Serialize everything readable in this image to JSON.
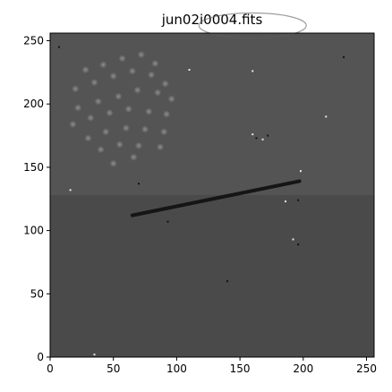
{
  "chart_data": {
    "type": "heatmap",
    "title": "jun02i0004.fits",
    "xlabel": "",
    "ylabel": "",
    "xlim": [
      0,
      256
    ],
    "ylim": [
      0,
      256
    ],
    "x_ticks": [
      0,
      50,
      100,
      150,
      200,
      250
    ],
    "y_ticks": [
      0,
      50,
      100,
      150,
      200,
      250
    ],
    "y_origin": "lower",
    "colormap": "grayscale",
    "colors": {
      "background_lower": "#4a4a4a",
      "background_upper": "#545454",
      "streak": "#151515",
      "spot": "#8e8e8e"
    },
    "background_boundary_y": 128,
    "streak": {
      "x0": 65,
      "y0": 112,
      "x1": 197,
      "y1": 139
    },
    "spots": [
      {
        "x": 28,
        "y": 227
      },
      {
        "x": 42,
        "y": 231
      },
      {
        "x": 57,
        "y": 236
      },
      {
        "x": 72,
        "y": 239
      },
      {
        "x": 83,
        "y": 232
      },
      {
        "x": 20,
        "y": 212
      },
      {
        "x": 35,
        "y": 217
      },
      {
        "x": 50,
        "y": 222
      },
      {
        "x": 65,
        "y": 226
      },
      {
        "x": 80,
        "y": 223
      },
      {
        "x": 91,
        "y": 216
      },
      {
        "x": 22,
        "y": 197
      },
      {
        "x": 38,
        "y": 202
      },
      {
        "x": 54,
        "y": 206
      },
      {
        "x": 69,
        "y": 211
      },
      {
        "x": 85,
        "y": 209
      },
      {
        "x": 96,
        "y": 204
      },
      {
        "x": 18,
        "y": 184
      },
      {
        "x": 32,
        "y": 189
      },
      {
        "x": 47,
        "y": 193
      },
      {
        "x": 62,
        "y": 196
      },
      {
        "x": 78,
        "y": 194
      },
      {
        "x": 92,
        "y": 192
      },
      {
        "x": 30,
        "y": 173
      },
      {
        "x": 44,
        "y": 178
      },
      {
        "x": 60,
        "y": 181
      },
      {
        "x": 75,
        "y": 180
      },
      {
        "x": 90,
        "y": 178
      },
      {
        "x": 40,
        "y": 164
      },
      {
        "x": 55,
        "y": 168
      },
      {
        "x": 70,
        "y": 167
      },
      {
        "x": 87,
        "y": 166
      },
      {
        "x": 50,
        "y": 153
      },
      {
        "x": 66,
        "y": 158
      }
    ],
    "defects": [
      {
        "x": 160,
        "y": 176
      },
      {
        "x": 163,
        "y": 173
      },
      {
        "x": 168,
        "y": 172
      },
      {
        "x": 172,
        "y": 175
      },
      {
        "x": 198,
        "y": 147
      },
      {
        "x": 196,
        "y": 124
      },
      {
        "x": 192,
        "y": 93
      },
      {
        "x": 196,
        "y": 89
      },
      {
        "x": 110,
        "y": 227
      },
      {
        "x": 70,
        "y": 137
      },
      {
        "x": 218,
        "y": 190
      },
      {
        "x": 7,
        "y": 245
      },
      {
        "x": 160,
        "y": 226
      },
      {
        "x": 232,
        "y": 237
      },
      {
        "x": 186,
        "y": 123
      },
      {
        "x": 93,
        "y": 107
      },
      {
        "x": 35,
        "y": 2
      },
      {
        "x": 140,
        "y": 60
      },
      {
        "x": 16,
        "y": 132
      }
    ]
  }
}
